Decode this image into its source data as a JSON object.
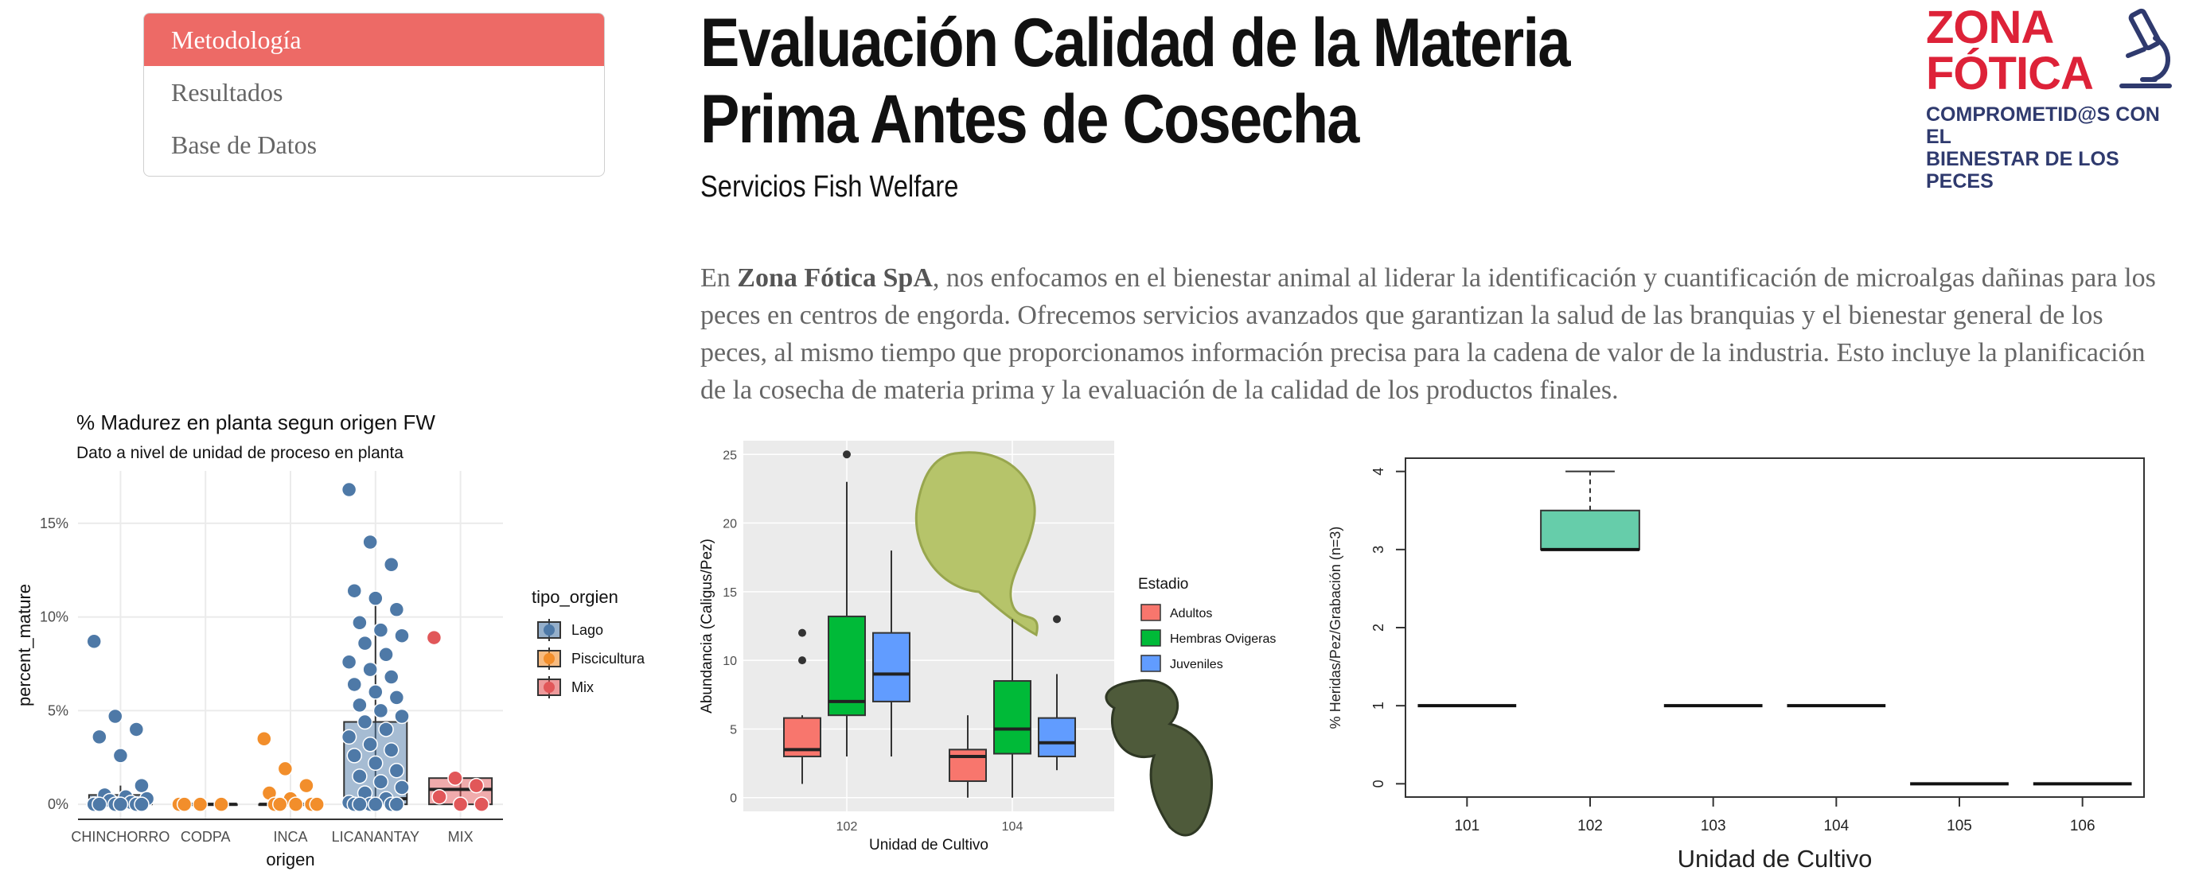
{
  "nav": {
    "items": [
      {
        "label": "Metodología",
        "active": true
      },
      {
        "label": "Resultados",
        "active": false
      },
      {
        "label": "Base de Datos",
        "active": false
      }
    ]
  },
  "header": {
    "title": "Evaluación Calidad de la Materia Prima Antes de Cosecha",
    "subtitle": "Servicios Fish Welfare"
  },
  "logo": {
    "line1": "ZONA",
    "line2": "FÓTICA",
    "tagline1": "COMPROMETID@S CON EL",
    "tagline2": "BIENESTAR DE LOS PECES",
    "icon": "microscope-icon",
    "brand_color": "#dd2238",
    "tag_color": "#2f3a6e"
  },
  "intro": {
    "prefix": "En ",
    "company": "Zona Fótica SpA",
    "text": ", nos enfocamos en el bienestar animal al liderar la identificación y cuantificación de microalgas dañinas para los peces en centros de engorda. Ofrecemos servicios avanzados que garantizan la salud de las branquias y el bienestar general de los peces, al mismo tiempo que proporcionamos información precisa para la cadena de valor de la industria. Esto incluye la planificación de la cosecha de materia prima y la evaluación de la calidad de los productos finales."
  },
  "chart_data": [
    {
      "type": "boxplot",
      "title": "% Madurez en planta segun origen FW",
      "subtitle": "Dato a nivel de unidad de proceso en planta",
      "xlabel": "origen",
      "ylabel": "percent_mature",
      "yticks": [
        "0%",
        "5%",
        "10%",
        "15%"
      ],
      "ylim": [
        -0.008,
        0.178
      ],
      "legend_title": "tipo_orgien",
      "legend": [
        {
          "name": "Lago",
          "color": "#4e79a7"
        },
        {
          "name": "Piscicultura",
          "color": "#f28e2b"
        },
        {
          "name": "Mix",
          "color": "#e15759"
        }
      ],
      "categories": [
        "CHINCHORRO",
        "CODPA",
        "INCA",
        "LICANANTAY",
        "MIX"
      ],
      "groups": [
        {
          "category": "CHINCHORRO",
          "tipo": "Lago",
          "box": {
            "q1": 0.0,
            "median": 0.002,
            "q3": 0.005,
            "whisker_low": 0.0,
            "whisker_high": 0.01
          },
          "points": [
            0.087,
            0.047,
            0.04,
            0.036,
            0.026,
            0.01,
            0.005,
            0.004,
            0.003,
            0.002,
            0.001,
            0.0,
            0.0,
            0.0,
            0.0,
            0.0,
            0.0
          ]
        },
        {
          "category": "CODPA",
          "tipo": "Piscicultura",
          "box": {
            "q1": 0.0,
            "median": 0.0,
            "q3": 0.0,
            "whisker_low": 0.0,
            "whisker_high": 0.0
          },
          "points": [
            0.0,
            0.0,
            0.0,
            0.0
          ]
        },
        {
          "category": "INCA",
          "tipo": "Piscicultura",
          "box": {
            "q1": 0.0,
            "median": 0.0,
            "q3": 0.0,
            "whisker_low": 0.0,
            "whisker_high": 0.0
          },
          "points": [
            0.035,
            0.019,
            0.01,
            0.006,
            0.003,
            0.0,
            0.0,
            0.0,
            0.0,
            0.0
          ]
        },
        {
          "category": "LICANANTAY",
          "tipo": "Lago",
          "box": {
            "q1": 0.0,
            "median": 0.003,
            "q3": 0.044,
            "whisker_low": 0.0,
            "whisker_high": 0.108
          },
          "points": [
            0.168,
            0.14,
            0.128,
            0.114,
            0.11,
            0.104,
            0.097,
            0.093,
            0.09,
            0.086,
            0.08,
            0.076,
            0.072,
            0.068,
            0.064,
            0.06,
            0.057,
            0.053,
            0.05,
            0.047,
            0.044,
            0.04,
            0.036,
            0.032,
            0.029,
            0.026,
            0.022,
            0.018,
            0.015,
            0.012,
            0.009,
            0.006,
            0.003,
            0.001,
            0.0,
            0.0,
            0.0,
            0.0,
            0.0,
            0.0
          ]
        },
        {
          "category": "MIX",
          "tipo": "Mix",
          "box": {
            "q1": 0.0,
            "median": 0.008,
            "q3": 0.014,
            "whisker_low": 0.0,
            "whisker_high": 0.014
          },
          "points": [
            0.089,
            0.014,
            0.01,
            0.004,
            0.0,
            0.0
          ]
        }
      ]
    },
    {
      "type": "boxplot",
      "xlabel": "Unidad de Cultivo",
      "ylabel": "Abundancia (Caligus/Pez)",
      "categories": [
        "102",
        "104"
      ],
      "ylim": [
        -1,
        26
      ],
      "yticks": [
        0,
        5,
        10,
        15,
        20,
        25
      ],
      "legend_title": "Estadio",
      "series": [
        {
          "name": "Adultos",
          "color": "#f8766d",
          "boxes": [
            {
              "category": "102",
              "whisker_low": 1,
              "q1": 3,
              "median": 3.5,
              "q3": 5.8,
              "whisker_high": 6,
              "outliers": [
                10,
                12
              ]
            },
            {
              "category": "104",
              "whisker_low": 0,
              "q1": 1.2,
              "median": 3,
              "q3": 3.5,
              "whisker_high": 6,
              "outliers": []
            }
          ]
        },
        {
          "name": "Hembras Ovigeras",
          "color": "#00ba38",
          "boxes": [
            {
              "category": "102",
              "whisker_low": 3,
              "q1": 6,
              "median": 7,
              "q3": 13.2,
              "whisker_high": 23,
              "outliers": [
                25
              ]
            },
            {
              "category": "104",
              "whisker_low": 0,
              "q1": 3.2,
              "median": 5,
              "q3": 8.5,
              "whisker_high": 13,
              "outliers": []
            }
          ]
        },
        {
          "name": "Juveniles",
          "color": "#619cff",
          "boxes": [
            {
              "category": "102",
              "whisker_low": 3,
              "q1": 7,
              "median": 9,
              "q3": 12,
              "whisker_high": 18,
              "outliers": []
            },
            {
              "category": "104",
              "whisker_low": 2,
              "q1": 3,
              "median": 4,
              "q3": 5.8,
              "whisker_high": 9,
              "outliers": [
                13
              ]
            }
          ]
        }
      ]
    },
    {
      "type": "boxplot",
      "xlabel": "Unidad de Cultivo",
      "ylabel": "% Heridas/Pez/Grabación (n=3)",
      "categories": [
        "101",
        "102",
        "103",
        "104",
        "105",
        "106"
      ],
      "ylim": [
        -0.17,
        4.17
      ],
      "yticks": [
        0,
        1,
        2,
        3,
        4
      ],
      "box_color": "#66cdaa",
      "boxes": [
        {
          "category": "101",
          "q1": 1,
          "median": 1,
          "q3": 1,
          "whisker_low": 1,
          "whisker_high": 1
        },
        {
          "category": "102",
          "q1": 3,
          "median": 3,
          "q3": 3.5,
          "whisker_low": 3,
          "whisker_high": 4
        },
        {
          "category": "103",
          "q1": 1,
          "median": 1,
          "q3": 1,
          "whisker_low": 1,
          "whisker_high": 1
        },
        {
          "category": "104",
          "q1": 1,
          "median": 1,
          "q3": 1,
          "whisker_low": 1,
          "whisker_high": 1
        },
        {
          "category": "105",
          "q1": 0,
          "median": 0,
          "q3": 0,
          "whisker_low": 0,
          "whisker_high": 0
        },
        {
          "category": "106",
          "q1": 0,
          "median": 0,
          "q3": 0,
          "whisker_low": 0,
          "whisker_high": 0
        }
      ]
    }
  ]
}
